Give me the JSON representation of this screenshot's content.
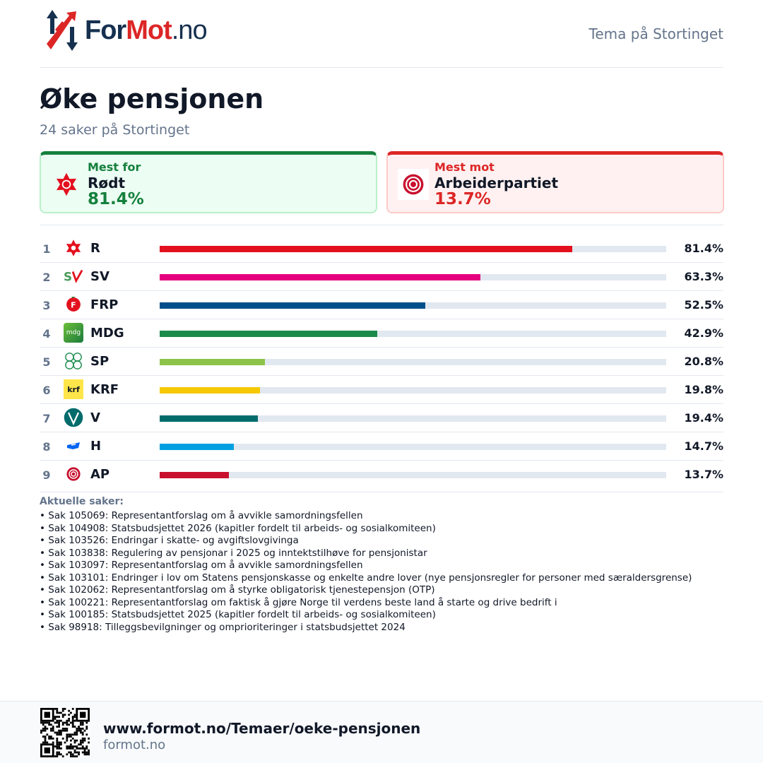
{
  "header": {
    "logo_for": "For",
    "logo_mot": "Mot",
    "logo_no": ".no",
    "tema": "Tema på Stortinget"
  },
  "page": {
    "title": "Øke pensjonen",
    "subtitle": "24 saker på Stortinget"
  },
  "most_for": {
    "label": "Mest for",
    "party": "Rødt",
    "pct": "81.4%"
  },
  "most_against": {
    "label": "Mest mot",
    "party": "Arbeiderpartiet",
    "pct": "13.7%"
  },
  "parties": [
    {
      "rank": "1",
      "abbr": "R",
      "pct": "81.4%",
      "value": 81.4,
      "color": "#e3101e",
      "logo": "rodt-star-icon"
    },
    {
      "rank": "2",
      "abbr": "SV",
      "pct": "63.3%",
      "value": 63.3,
      "color": "#e5007e",
      "logo": "sv-logo-icon"
    },
    {
      "rank": "3",
      "abbr": "FRP",
      "pct": "52.5%",
      "value": 52.5,
      "color": "#004f8b",
      "logo": "frp-logo-icon"
    },
    {
      "rank": "4",
      "abbr": "MDG",
      "pct": "42.9%",
      "value": 42.9,
      "color": "#1b8a4b",
      "logo": "mdg-logo-icon"
    },
    {
      "rank": "5",
      "abbr": "SP",
      "pct": "20.8%",
      "value": 20.8,
      "color": "#8cc44a",
      "logo": "sp-clover-icon"
    },
    {
      "rank": "6",
      "abbr": "KRF",
      "pct": "19.8%",
      "value": 19.8,
      "color": "#f5c800",
      "logo": "krf-logo-icon"
    },
    {
      "rank": "7",
      "abbr": "V",
      "pct": "19.4%",
      "value": 19.4,
      "color": "#006b6b",
      "logo": "venstre-logo-icon"
    },
    {
      "rank": "8",
      "abbr": "H",
      "pct": "14.7%",
      "value": 14.7,
      "color": "#00a0e0",
      "logo": "hoyre-logo-icon"
    },
    {
      "rank": "9",
      "abbr": "AP",
      "pct": "13.7%",
      "value": 13.7,
      "color": "#c8102e",
      "logo": "ap-rose-icon"
    }
  ],
  "cases": {
    "heading": "Aktuelle saker:",
    "items": [
      "• Sak 105069: Representantforslag om å avvikle samordningsfellen",
      "• Sak 104908: Statsbudsjettet 2026 (kapitler fordelt til arbeids- og sosialkomiteen)",
      "• Sak 103526: Endringar i skatte- og avgiftslovgivinga",
      "• Sak 103838: Regulering av pensjonar i 2025 og inntektstilhøve for pensjonistar",
      "• Sak 103097: Representantforslag om å avvikle samordningsfellen",
      "• Sak 103101: Endringer i lov om Statens pensjonskasse og enkelte andre lover (nye pensjonsregler for personer med særaldersgrense)",
      "• Sak 102062: Representantforslag om å styrke obligatorisk tjenestepensjon (OTP)",
      "• Sak 100221: Representantforslag om faktisk å gjøre Norge til verdens beste land å starte og drive bedrift i",
      "• Sak 100185: Statsbudsjettet 2025 (kapitler fordelt til arbeids- og sosialkomiteen)",
      "• Sak 98918: Tilleggsbevilgninger og omprioriteringer i statsbudsjettet 2024"
    ]
  },
  "footer": {
    "url": "www.formot.no/Temaer/oeke-pensjonen",
    "domain": "formot.no"
  }
}
